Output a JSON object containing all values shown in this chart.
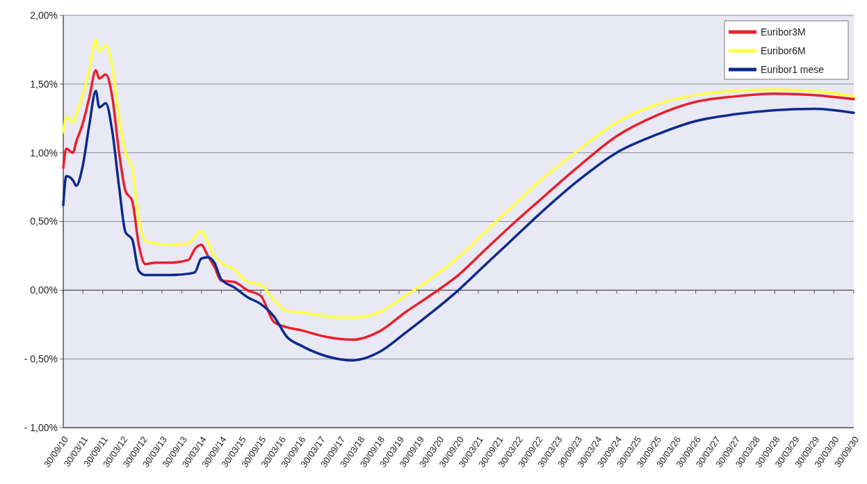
{
  "chart_data": {
    "type": "line",
    "x": [
      "2010-09-30",
      "2010-10-28",
      "2010-12-28",
      "2011-01-28",
      "2011-03-28",
      "2011-05-28",
      "2011-07-28",
      "2011-08-28",
      "2011-10-28",
      "2011-12-28",
      "2012-02-28",
      "2012-04-28",
      "2012-06-28",
      "2012-08-28",
      "2012-10-28",
      "2013-01-28",
      "2013-05-28",
      "2013-11-28",
      "2014-01-28",
      "2014-03-28",
      "2014-05-28",
      "2014-07-28",
      "2014-09-28",
      "2015-01-28",
      "2015-05-28",
      "2015-09-28",
      "2016-01-28",
      "2016-05-28",
      "2016-09-28",
      "2017-05-28",
      "2018-01-28",
      "2018-09-28",
      "2019-05-28",
      "2020-01-28",
      "2020-09-28",
      "2021-05-28",
      "2022-01-28",
      "2022-09-28",
      "2023-09-28",
      "2024-09-28",
      "2025-09-28",
      "2026-09-28",
      "2027-09-28",
      "2028-09-28",
      "2029-09-28",
      "2030-09-30"
    ],
    "series": [
      {
        "name": "Euribor3M",
        "color": "#e8202a",
        "values": [
          0.89,
          1.03,
          1.0,
          1.08,
          1.21,
          1.4,
          1.6,
          1.54,
          1.57,
          1.4,
          1.0,
          0.72,
          0.65,
          0.33,
          0.19,
          0.2,
          0.2,
          0.22,
          0.3,
          0.33,
          0.25,
          0.17,
          0.07,
          0.06,
          0.0,
          -0.04,
          -0.23,
          -0.27,
          -0.29,
          -0.34,
          -0.36,
          -0.3,
          -0.16,
          -0.03,
          0.11,
          0.29,
          0.47,
          0.64,
          0.89,
          1.12,
          1.27,
          1.37,
          1.41,
          1.43,
          1.42,
          1.39
        ]
      },
      {
        "name": "Euribor6M",
        "color": "#ffff3c",
        "values": [
          1.15,
          1.26,
          1.22,
          1.28,
          1.42,
          1.6,
          1.82,
          1.74,
          1.78,
          1.62,
          1.25,
          1.0,
          0.88,
          0.52,
          0.36,
          0.34,
          0.33,
          0.34,
          0.39,
          0.43,
          0.35,
          0.25,
          0.2,
          0.15,
          0.06,
          0.04,
          -0.07,
          -0.15,
          -0.16,
          -0.19,
          -0.2,
          -0.16,
          -0.04,
          0.09,
          0.24,
          0.42,
          0.6,
          0.78,
          1.01,
          1.22,
          1.35,
          1.42,
          1.45,
          1.46,
          1.45,
          1.41
        ]
      },
      {
        "name": "Euribor1 mese",
        "color": "#0a2a8c",
        "values": [
          0.62,
          0.83,
          0.8,
          0.76,
          0.9,
          1.2,
          1.45,
          1.33,
          1.36,
          1.15,
          0.75,
          0.42,
          0.37,
          0.14,
          0.11,
          0.11,
          0.11,
          0.12,
          0.13,
          0.23,
          0.24,
          0.2,
          0.08,
          0.02,
          -0.05,
          -0.1,
          -0.19,
          -0.34,
          -0.4,
          -0.48,
          -0.51,
          -0.45,
          -0.31,
          -0.16,
          0.0,
          0.18,
          0.36,
          0.54,
          0.79,
          1.0,
          1.13,
          1.23,
          1.28,
          1.31,
          1.32,
          1.29
        ]
      }
    ],
    "xlim": [
      "2010-09-30",
      "2030-09-30"
    ],
    "xticks": [
      {
        "value": "2010-09-30",
        "label": "30/09/10"
      },
      {
        "value": "2011-03-30",
        "label": "30/03/11"
      },
      {
        "value": "2011-09-30",
        "label": "30/09/11"
      },
      {
        "value": "2012-03-30",
        "label": "30/03/12"
      },
      {
        "value": "2012-09-30",
        "label": "30/09/12"
      },
      {
        "value": "2013-03-30",
        "label": "30/03/13"
      },
      {
        "value": "2013-09-30",
        "label": "30/09/13"
      },
      {
        "value": "2014-03-30",
        "label": "30/03/14"
      },
      {
        "value": "2014-09-30",
        "label": "30/09/14"
      },
      {
        "value": "2015-03-30",
        "label": "30/03/15"
      },
      {
        "value": "2015-09-30",
        "label": "30/09/15"
      },
      {
        "value": "2016-03-30",
        "label": "30/03/16"
      },
      {
        "value": "2016-09-30",
        "label": "30/09/16"
      },
      {
        "value": "2017-03-30",
        "label": "30/03/17"
      },
      {
        "value": "2017-09-30",
        "label": "30/09/17"
      },
      {
        "value": "2018-03-30",
        "label": "30/03/18"
      },
      {
        "value": "2018-09-30",
        "label": "30/09/18"
      },
      {
        "value": "2019-03-30",
        "label": "30/03/19"
      },
      {
        "value": "2019-09-30",
        "label": "30/09/19"
      },
      {
        "value": "2020-03-30",
        "label": "30/03/20"
      },
      {
        "value": "2020-09-30",
        "label": "30/09/20"
      },
      {
        "value": "2021-03-30",
        "label": "30/03/21"
      },
      {
        "value": "2021-09-30",
        "label": "30/09/21"
      },
      {
        "value": "2022-03-30",
        "label": "30/03/22"
      },
      {
        "value": "2022-09-30",
        "label": "30/09/22"
      },
      {
        "value": "2023-03-30",
        "label": "30/03/23"
      },
      {
        "value": "2023-09-30",
        "label": "30/09/23"
      },
      {
        "value": "2024-03-30",
        "label": "30/03/24"
      },
      {
        "value": "2024-09-30",
        "label": "30/09/24"
      },
      {
        "value": "2025-03-30",
        "label": "30/03/25"
      },
      {
        "value": "2025-09-30",
        "label": "30/09/25"
      },
      {
        "value": "2026-03-30",
        "label": "30/03/26"
      },
      {
        "value": "2026-09-30",
        "label": "30/09/26"
      },
      {
        "value": "2027-03-30",
        "label": "30/03/27"
      },
      {
        "value": "2027-09-30",
        "label": "30/09/27"
      },
      {
        "value": "2028-03-30",
        "label": "30/03/28"
      },
      {
        "value": "2028-09-30",
        "label": "30/09/28"
      },
      {
        "value": "2029-03-30",
        "label": "30/03/29"
      },
      {
        "value": "2029-09-30",
        "label": "30/09/29"
      },
      {
        "value": "2030-03-30",
        "label": "30/03/30"
      },
      {
        "value": "2030-09-30",
        "label": "30/09/30"
      }
    ],
    "ylim": [
      -1,
      2
    ],
    "yticks": [
      {
        "value": -1,
        "label": "- 1,00%"
      },
      {
        "value": -0.5,
        "label": "- 0,50%"
      },
      {
        "value": 0,
        "label": "0,00%"
      },
      {
        "value": 0.5,
        "label": "0,50%"
      },
      {
        "value": 1,
        "label": "1,00%"
      },
      {
        "value": 1.5,
        "label": "1,50%"
      },
      {
        "value": 2,
        "label": "2,00%"
      }
    ],
    "grid": "y",
    "legend": "top right",
    "marker": "none",
    "line_style": "solid"
  }
}
